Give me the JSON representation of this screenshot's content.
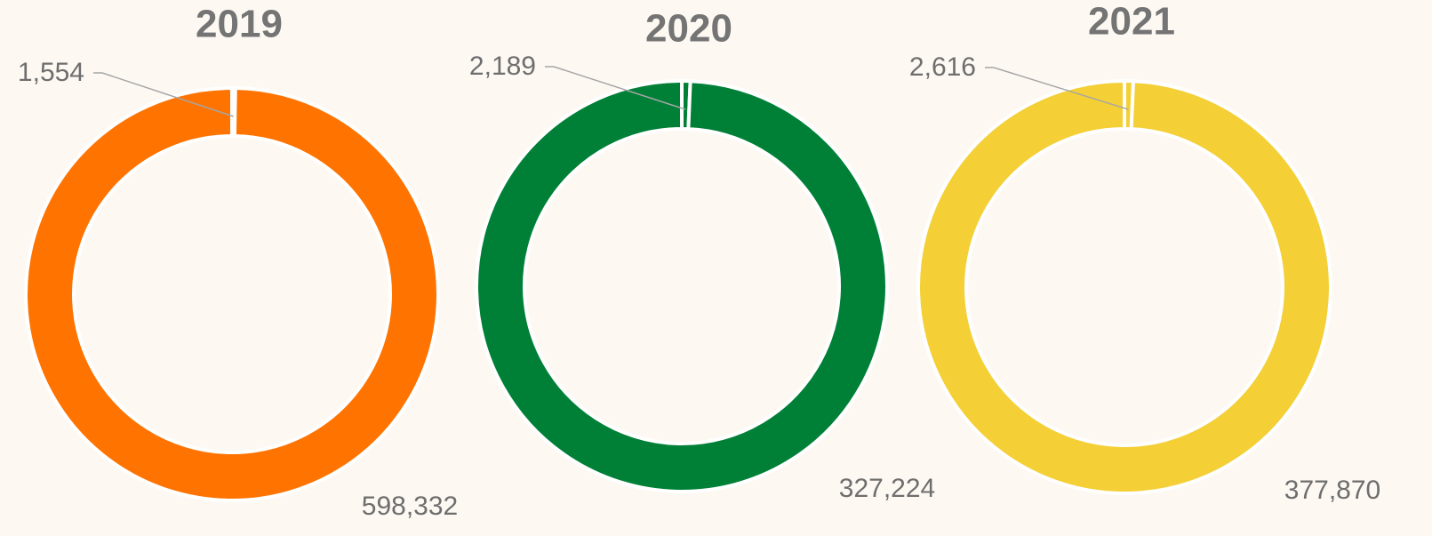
{
  "chart_data": [
    {
      "type": "donut",
      "title": "2019",
      "values": [
        1554,
        598332
      ],
      "value_labels": [
        "1,554",
        "598,332"
      ],
      "color": "#ff7300"
    },
    {
      "type": "donut",
      "title": "2020",
      "values": [
        2189,
        327224
      ],
      "value_labels": [
        "2,189",
        "327,224"
      ],
      "color": "#008037"
    },
    {
      "type": "donut",
      "title": "2021",
      "values": [
        2616,
        377870
      ],
      "value_labels": [
        "2,616",
        "377,870"
      ],
      "color": "#f4cf35"
    }
  ]
}
